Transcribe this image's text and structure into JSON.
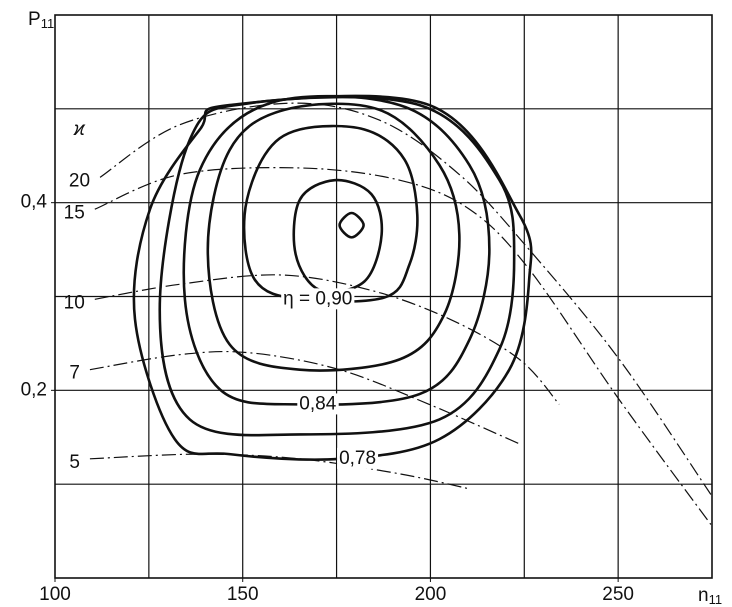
{
  "chart_data": {
    "type": "contour",
    "x_label": {
      "base": "n",
      "sub": "11"
    },
    "y_label": {
      "base": "P",
      "sub": "11"
    },
    "xlim": [
      100,
      275
    ],
    "ylim": [
      0,
      0.6
    ],
    "xticks": [
      100,
      150,
      200,
      250
    ],
    "yticks": [
      {
        "value": 0.2,
        "label": "0,2"
      },
      {
        "value": 0.4,
        "label": "0,4"
      }
    ],
    "xgrid": [
      125,
      150,
      175,
      200,
      225,
      250
    ],
    "ygrid": [
      0.1,
      0.2,
      0.3,
      0.4,
      0.5
    ],
    "grid": true,
    "kappa_label": "ϰ",
    "contours": [
      {
        "x": [
          179,
          182.2,
          179,
          175.8
        ],
        "y": [
          0.389,
          0.376,
          0.363,
          0.376
        ]
      },
      {
        "x": [
          174.5,
          184.3,
          187.0,
          182.4,
          170.5,
          164.1,
          165.2
        ],
        "y": [
          0.424,
          0.409,
          0.366,
          0.316,
          0.307,
          0.345,
          0.403
        ]
      },
      {
        "label": "η = 0,90",
        "x": [
          165.2,
          182.4,
          193.1,
          196.5,
          194.4,
          187.8,
          165.2,
          153.2,
          150.5,
          155.9
        ],
        "y": [
          0.478,
          0.478,
          0.446,
          0.387,
          0.334,
          0.299,
          0.297,
          0.318,
          0.387,
          0.451
        ]
      },
      {
        "x": [
          161.2,
          186.4,
          202.4,
          207.7,
          203.7,
          191.8,
          165.2,
          146.5,
          140.7,
          146.5
        ],
        "y": [
          0.499,
          0.499,
          0.44,
          0.366,
          0.281,
          0.233,
          0.222,
          0.249,
          0.35,
          0.456
        ]
      },
      {
        "label": "0,84",
        "x": [
          157.2,
          191.8,
          210.4,
          215.7,
          210.4,
          197.1,
          165.2,
          143.9,
          134.6,
          138.6
        ],
        "y": [
          0.506,
          0.504,
          0.44,
          0.35,
          0.254,
          0.196,
          0.185,
          0.201,
          0.297,
          0.435
        ]
      },
      {
        "x": [
          151.9,
          197.1,
          218.4,
          222.3,
          218.4,
          202.4,
          165.2,
          135.9,
          127.9,
          135.9
        ],
        "y": [
          0.506,
          0.504,
          0.424,
          0.339,
          0.244,
          0.169,
          0.153,
          0.169,
          0.286,
          0.467
        ]
      },
      {
        "label": "0,78",
        "x": [
          146.5,
          199.7,
          223.7,
          226.3,
          221.0,
          202.4,
          175.8,
          146.5,
          131.9,
          121.3,
          125.3,
          138.6
        ],
        "y": [
          0.504,
          0.504,
          0.387,
          0.318,
          0.222,
          0.148,
          0.127,
          0.132,
          0.148,
          0.276,
          0.393,
          0.478
        ]
      }
    ],
    "curves": [
      {
        "name": "20",
        "x": [
          112.0,
          133.2,
          162.5,
          186.4,
          207.7,
          226.3,
          250.3,
          274.7
        ],
        "y": [
          0.427,
          0.483,
          0.506,
          0.488,
          0.43,
          0.35,
          0.233,
          0.089
        ]
      },
      {
        "name": "15",
        "x": [
          110.6,
          133.2,
          165.2,
          191.8,
          210.4,
          226.3,
          250.3,
          274.7
        ],
        "y": [
          0.393,
          0.43,
          0.437,
          0.424,
          0.393,
          0.329,
          0.19,
          0.057
        ]
      },
      {
        "name": "10",
        "x": [
          110.6,
          133.2,
          159.8,
          183.8,
          205.1,
          223.7,
          234.3
        ],
        "y": [
          0.297,
          0.313,
          0.323,
          0.307,
          0.276,
          0.233,
          0.185
        ]
      },
      {
        "name": "7",
        "x": [
          109.3,
          133.2,
          151.9,
          175.8,
          199.7,
          223.7
        ],
        "y": [
          0.222,
          0.238,
          0.24,
          0.222,
          0.185,
          0.143
        ]
      },
      {
        "name": "5",
        "x": [
          109.3,
          138.6,
          165.2,
          191.8,
          210.4
        ],
        "y": [
          0.127,
          0.132,
          0.127,
          0.111,
          0.095
        ]
      }
    ]
  }
}
